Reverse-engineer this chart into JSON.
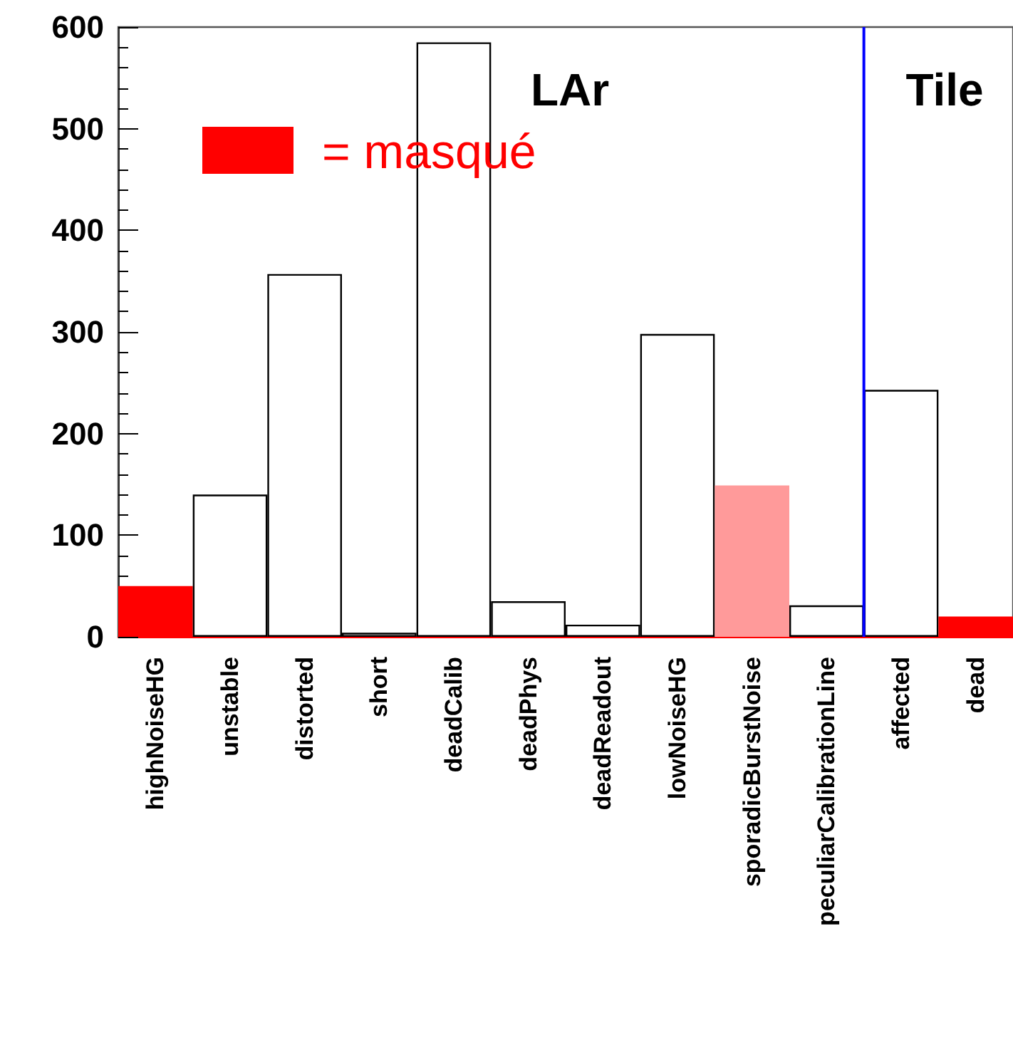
{
  "chart_data": {
    "type": "bar",
    "categories": [
      "highNoiseHG",
      "unstable",
      "distorted",
      "short",
      "deadCalib",
      "deadPhys",
      "deadReadout",
      "lowNoiseHG",
      "sporadicBurstNoise",
      "peculiarCalibrationLine",
      "affected",
      "dead"
    ],
    "values": [
      50,
      140,
      357,
      4,
      585,
      35,
      12,
      298,
      149,
      31,
      243,
      20
    ],
    "colors": [
      "#ff0000",
      "#ffffff",
      "#ffffff",
      "#ffffff",
      "#ffffff",
      "#ffffff",
      "#ffffff",
      "#ffffff",
      "#ff9a9a",
      "#ffffff",
      "#ffffff",
      "#ff0000"
    ],
    "ref_lines": [
      {
        "axis": "x",
        "value": "affected",
        "color": "#0000ff"
      }
    ],
    "ylim": [
      0,
      600
    ],
    "yticks": [
      0,
      100,
      200,
      300,
      400,
      500,
      600
    ],
    "grid": false,
    "annotations": [
      "LAr",
      "Tile",
      "= masqué"
    ]
  }
}
